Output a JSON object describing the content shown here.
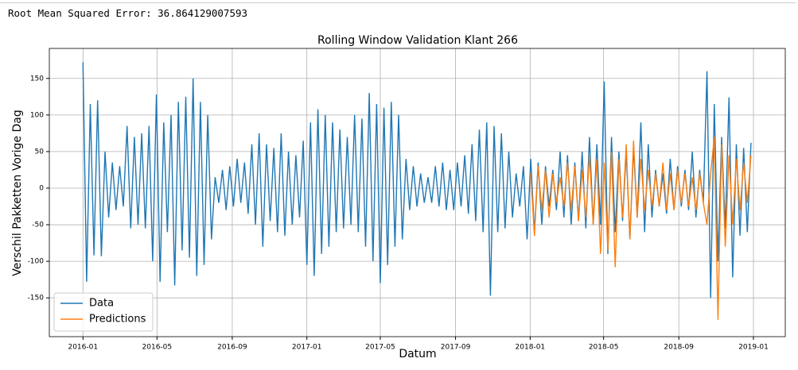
{
  "output_text": "Root Mean Squared Error: 36.864129007593",
  "chart_data": {
    "type": "line",
    "title": "Rolling Window Validation Klant 266",
    "xlabel": "Datum",
    "ylabel": "Verschil Pakketten Vorige Dag",
    "xlim": [
      -55,
      1148
    ],
    "ylim": [
      -203,
      191
    ],
    "xticks": [
      {
        "value": 0,
        "label": "2016-01"
      },
      {
        "value": 121,
        "label": "2016-05"
      },
      {
        "value": 244,
        "label": "2016-09"
      },
      {
        "value": 366,
        "label": "2017-01"
      },
      {
        "value": 486,
        "label": "2017-05"
      },
      {
        "value": 609,
        "label": "2017-09"
      },
      {
        "value": 731,
        "label": "2018-01"
      },
      {
        "value": 851,
        "label": "2018-05"
      },
      {
        "value": 974,
        "label": "2018-09"
      },
      {
        "value": 1096,
        "label": "2019-01"
      }
    ],
    "yticks": [
      -150,
      -100,
      -50,
      0,
      50,
      100,
      150
    ],
    "grid": true,
    "legend": "lower left",
    "series": [
      {
        "name": "Data",
        "color": "#1f77b4",
        "x": [
          0,
          6,
          12,
          18,
          24,
          30,
          36,
          42,
          48,
          54,
          60,
          66,
          72,
          78,
          84,
          90,
          96,
          102,
          108,
          114,
          120,
          126,
          132,
          138,
          144,
          150,
          156,
          162,
          168,
          174,
          180,
          186,
          192,
          198,
          204,
          210,
          216,
          222,
          228,
          234,
          240,
          246,
          252,
          258,
          264,
          270,
          276,
          282,
          288,
          294,
          300,
          306,
          312,
          318,
          324,
          330,
          336,
          342,
          348,
          354,
          360,
          366,
          372,
          378,
          384,
          390,
          396,
          402,
          408,
          414,
          420,
          426,
          432,
          438,
          444,
          450,
          456,
          462,
          468,
          474,
          480,
          486,
          492,
          498,
          504,
          510,
          516,
          522,
          528,
          534,
          540,
          546,
          552,
          558,
          564,
          570,
          576,
          582,
          588,
          594,
          600,
          606,
          612,
          618,
          624,
          630,
          636,
          642,
          648,
          654,
          660,
          666,
          672,
          678,
          684,
          690,
          696,
          702,
          708,
          714,
          720,
          726,
          732,
          738,
          744,
          750,
          756,
          762,
          768,
          774,
          780,
          786,
          792,
          798,
          804,
          810,
          816,
          822,
          828,
          834,
          840,
          846,
          852,
          858,
          864,
          870,
          876,
          882,
          888,
          894,
          900,
          906,
          912,
          918,
          924,
          930,
          936,
          942,
          948,
          954,
          960,
          966,
          972,
          978,
          984,
          990,
          996,
          1002,
          1008,
          1014,
          1020,
          1026,
          1032,
          1038,
          1044,
          1050,
          1056,
          1062,
          1068,
          1074,
          1080,
          1086,
          1092
        ],
        "values": [
          172,
          -128,
          115,
          -92,
          120,
          -93,
          50,
          -40,
          35,
          -30,
          30,
          -25,
          85,
          -55,
          70,
          -50,
          75,
          -55,
          85,
          -100,
          128,
          -128,
          90,
          -60,
          100,
          -133,
          118,
          -85,
          125,
          -95,
          150,
          -120,
          118,
          -105,
          100,
          -70,
          15,
          -20,
          25,
          -30,
          30,
          -25,
          40,
          -20,
          35,
          -35,
          60,
          -50,
          75,
          -80,
          60,
          -45,
          55,
          -60,
          75,
          -65,
          50,
          -50,
          45,
          -40,
          65,
          -105,
          90,
          -120,
          108,
          -90,
          100,
          -80,
          90,
          -60,
          80,
          -55,
          70,
          -50,
          100,
          -60,
          95,
          -80,
          130,
          -100,
          115,
          -130,
          110,
          -105,
          118,
          -80,
          100,
          -70,
          40,
          -30,
          30,
          -25,
          20,
          -20,
          15,
          -20,
          30,
          -25,
          35,
          -30,
          25,
          -30,
          35,
          -25,
          45,
          -35,
          60,
          -45,
          80,
          -60,
          90,
          -147,
          85,
          -60,
          75,
          -55,
          50,
          -40,
          20,
          -25,
          30,
          -70,
          40,
          -60,
          35,
          -50,
          30,
          -25,
          25,
          -30,
          50,
          -40,
          45,
          -50,
          35,
          -45,
          50,
          -55,
          70,
          -50,
          60,
          -50,
          146,
          -90,
          70,
          -60,
          50,
          -45,
          50,
          -70,
          55,
          -40,
          90,
          -60,
          60,
          -40,
          25,
          -25,
          20,
          -35,
          40,
          -30,
          30,
          -25,
          25,
          -30,
          50,
          -40,
          25,
          -20,
          160,
          -150,
          115,
          -100,
          70,
          -55,
          124,
          -122,
          60,
          -65,
          55,
          -60,
          62
        ]
      },
      {
        "name": "Predictions",
        "color": "#ff7f0e",
        "x": [
          732,
          738,
          744,
          750,
          756,
          762,
          768,
          774,
          780,
          786,
          792,
          798,
          804,
          810,
          816,
          822,
          828,
          834,
          840,
          846,
          852,
          858,
          864,
          870,
          876,
          882,
          888,
          894,
          900,
          906,
          912,
          918,
          924,
          930,
          936,
          942,
          948,
          954,
          960,
          966,
          972,
          978,
          984,
          990,
          996,
          1002,
          1008,
          1014,
          1020,
          1026,
          1032,
          1038,
          1044,
          1050,
          1056,
          1062,
          1068,
          1074,
          1080,
          1086,
          1092
        ],
        "values": [
          20,
          -65,
          30,
          -30,
          25,
          -40,
          20,
          -20,
          15,
          -25,
          35,
          -30,
          30,
          -45,
          25,
          -40,
          45,
          -50,
          40,
          -90,
          35,
          -85,
          50,
          -108,
          40,
          -40,
          60,
          -70,
          65,
          -40,
          40,
          -30,
          25,
          -25,
          20,
          -25,
          35,
          -30,
          20,
          -30,
          25,
          -20,
          20,
          -25,
          15,
          -30,
          20,
          -20,
          -50,
          20,
          70,
          -180,
          60,
          -80,
          45,
          -50,
          40,
          -30,
          35,
          -20,
          45
        ]
      }
    ]
  }
}
